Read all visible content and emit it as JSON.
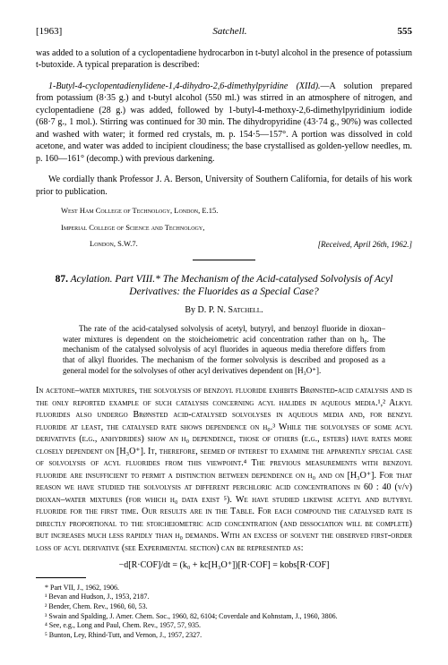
{
  "header": {
    "year": "[1963]",
    "running": "Satchell.",
    "page": "555"
  },
  "section1": {
    "intro": "was added to a solution of a cyclopentadiene hydrocarbon in t-butyl alcohol in the presence of potassium t-butoxide.  A typical preparation is described:",
    "prep_title": "1-Butyl-4-cyclopentadienylidene-1,4-dihydro-2,6-dimethylpyridine (XIId).",
    "prep_body": "—A solution prepared from potassium (8·35 g.) and t-butyl alcohol (550 ml.) was stirred in an atmosphere of nitrogen, and cyclopentadiene (28 g.) was added, followed by 1-butyl-4-methoxy-2,6-dimethylpyridinium iodide (68·7 g., 1 mol.).  Stirring was continued for 30 min.  The dihydropyridine (43·74 g., 90%) was collected and washed with water; it formed red crystals, m. p. 154·5—157°.  A portion was dissolved in cold acetone, and water was added to incipient cloudiness; the base crystallised as golden-yellow needles, m. p. 160—161° (decomp.) with previous darkening.",
    "ack": "We cordially thank Professor J. A. Berson, University of Southern California, for details of his work prior to publication.",
    "affil1": "West Ham College of Technology, London, E.15.",
    "affil2": "Imperial College of Science and Technology,",
    "affil3": "London, S.W.7.",
    "received": "[Received, April 26th, 1962.]"
  },
  "article": {
    "number": "87.",
    "title_main": "Acylation.   Part VIII.*   The Mechanism of the Acid-catalysed Solvolysis of Acyl Derivatives:  the Fluorides as a Special Case?",
    "author_by": "By",
    "author_name": "D. P. N. Satchell.",
    "abstract": "The rate of the acid-catalysed solvolysis of acetyl, butyryl, and benzoyl fluoride in dioxan–water mixtures is dependent on the stoicheiometric acid concentration rather than on h₀.  The mechanism of the catalysed solvolysis of acyl fluorides in aqueous media therefore differs from that of alkyl fluorides.  The mechanism of the former solvolysis is described and proposed as a general model for the solvolyses of other acyl derivatives dependent on [H₃O⁺].",
    "body": "In acetone–water mixtures, the solvolysis of benzoyl fluoride exhibits Brønsted-acid catalysis and is the only reported example of such catalysis concerning acyl halides in aqueous media.¹,²  Alkyl fluorides also undergo Brønsted acid-catalysed solvolyses in aqueous media and, for benzyl fluoride at least, the catalysed rate shows dependence on h₀.³  While the solvolyses of some acyl derivatives (e.g., anhydrides) show an h₀ dependence, those of others (e.g., esters) have rates more closely dependent on [H₃O⁺].  It, therefore, seemed of interest to examine the apparently special case of solvolysis of acyl fluorides from this viewpoint.⁴  The previous measurements with benzoyl fluoride are insufficient to permit a distinction between dependence on h₀ and on [H₃O⁺].  For that reason we have studied the solvolysis at different perchloric acid concentrations in 60 : 40 (v/v) dioxan–water mixtures (for which h₀ data exist ⁵).  We have studied likewise acetyl and butyryl fluoride for the first time.  Our results are in the Table.  For each compound the catalysed rate is directly proportional to the stoicheiometric acid concentration (and dissociation will be complete) but increases much less rapidly than h₀ demands.  With an excess of solvent the observed first-order loss of acyl derivative (see Experimental section) can be represented as:",
    "equation": "−d[R·COF]/dt = (k₀ + kc[H₃O⁺])[R·COF] = kobs[R·COF]"
  },
  "footnotes": {
    "star": "* Part VII, J., 1962, 1906.",
    "fn1": "¹ Bevan and Hudson, J., 1953, 2187.",
    "fn2": "² Bender, Chem. Rev., 1960, 60, 53.",
    "fn3": "³ Swain and Spalding, J. Amer. Chem. Soc., 1960, 82, 6104;  Coverdale and Kohnstam, J., 1960, 3806.",
    "fn4": "⁴ See, e.g., Long and Paul, Chem. Rev., 1957, 57, 935.",
    "fn5": "⁵ Bunton, Ley, Rhind-Tutt, and Vernon, J., 1957, 2327."
  }
}
